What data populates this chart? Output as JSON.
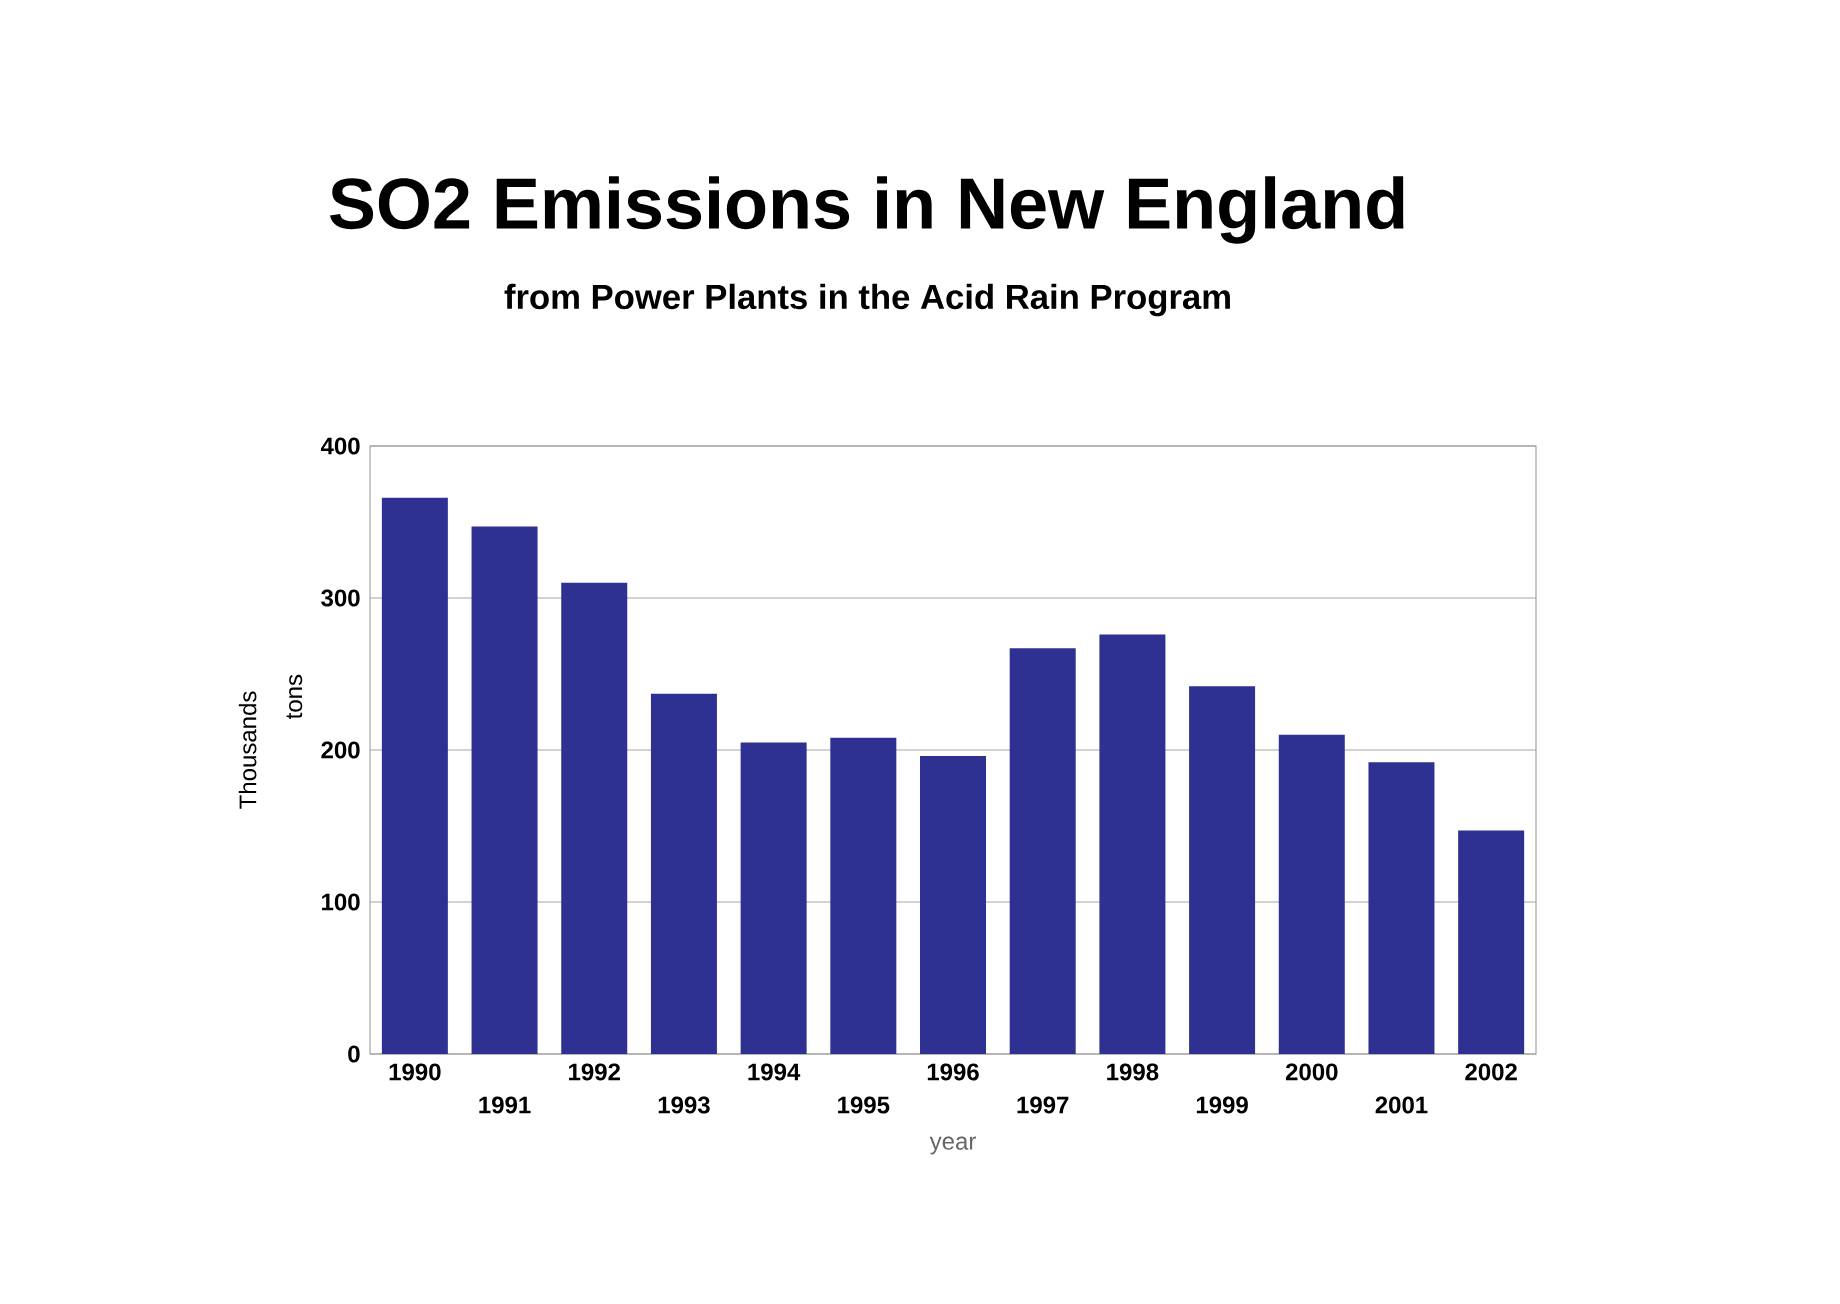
{
  "chart_data": {
    "type": "bar",
    "title": "SO2 Emissions in New England",
    "subtitle": "from Power Plants in the Acid Rain Program",
    "categories": [
      "1990",
      "1991",
      "1992",
      "1993",
      "1994",
      "1995",
      "1996",
      "1997",
      "1998",
      "1999",
      "2000",
      "2001",
      "2002"
    ],
    "values": [
      366,
      347,
      310,
      237,
      205,
      208,
      196,
      267,
      276,
      242,
      210,
      192,
      147
    ],
    "color": "#2e3192",
    "xlabel": "year",
    "ylabel": "tons",
    "annotations": [
      "Thousands"
    ],
    "ylim": [
      0,
      400
    ],
    "yticks": [
      0,
      100,
      200,
      300,
      400
    ],
    "grid": "y"
  }
}
